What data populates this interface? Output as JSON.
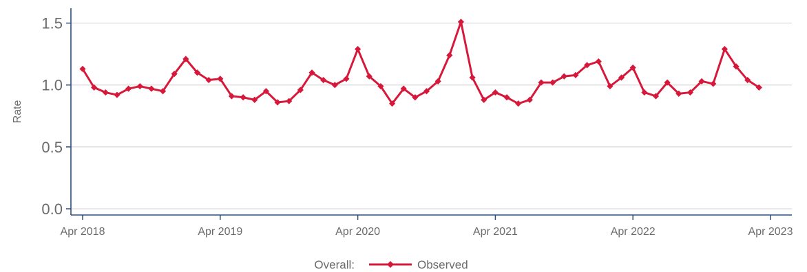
{
  "chart_data": {
    "type": "line",
    "ylabel": "Rate",
    "ylim": [
      -0.05,
      1.62
    ],
    "y_ticks": [
      "0.0",
      "0.5",
      "1.0",
      "1.5"
    ],
    "y_tick_values": [
      0.0,
      0.5,
      1.0,
      1.5
    ],
    "x_ticks": [
      "Apr 2018",
      "Apr 2019",
      "Apr 2020",
      "Apr 2021",
      "Apr 2022",
      "Apr 2023"
    ],
    "x_tick_values": [
      "2018-04",
      "2019-04",
      "2020-04",
      "2021-04",
      "2022-04",
      "2023-04"
    ],
    "grid": "horizontal",
    "legend": {
      "title": "Overall:",
      "position": "bottom"
    },
    "series": [
      {
        "name": "Observed",
        "color": "#d6193b",
        "marker": "diamond",
        "x": [
          "2018-04",
          "2018-05",
          "2018-06",
          "2018-07",
          "2018-08",
          "2018-09",
          "2018-10",
          "2018-11",
          "2018-12",
          "2019-01",
          "2019-02",
          "2019-03",
          "2019-04",
          "2019-05",
          "2019-06",
          "2019-07",
          "2019-08",
          "2019-09",
          "2019-10",
          "2019-11",
          "2019-12",
          "2020-01",
          "2020-02",
          "2020-03",
          "2020-04",
          "2020-05",
          "2020-06",
          "2020-07",
          "2020-08",
          "2020-09",
          "2020-10",
          "2020-11",
          "2020-12",
          "2021-01",
          "2021-02",
          "2021-03",
          "2021-04",
          "2021-05",
          "2021-06",
          "2021-07",
          "2021-08",
          "2021-09",
          "2021-10",
          "2021-11",
          "2021-12",
          "2022-01",
          "2022-02",
          "2022-03",
          "2022-04",
          "2022-05",
          "2022-06",
          "2022-07",
          "2022-08",
          "2022-09",
          "2022-10",
          "2022-11",
          "2022-12",
          "2023-01",
          "2023-02",
          "2023-03"
        ],
        "values": [
          1.13,
          0.98,
          0.94,
          0.92,
          0.97,
          0.99,
          0.97,
          0.95,
          1.09,
          1.21,
          1.1,
          1.04,
          1.05,
          0.91,
          0.9,
          0.88,
          0.95,
          0.86,
          0.87,
          0.96,
          1.1,
          1.04,
          1.0,
          1.05,
          1.29,
          1.07,
          0.99,
          0.85,
          0.97,
          0.9,
          0.95,
          1.03,
          1.24,
          1.51,
          1.06,
          0.88,
          0.94,
          0.9,
          0.85,
          0.88,
          1.02,
          1.02,
          1.07,
          1.08,
          1.16,
          1.19,
          0.99,
          1.06,
          1.14,
          0.94,
          0.91,
          1.02,
          0.93,
          0.94,
          1.03,
          1.01,
          1.29,
          1.15,
          1.04,
          0.98
        ]
      }
    ]
  }
}
